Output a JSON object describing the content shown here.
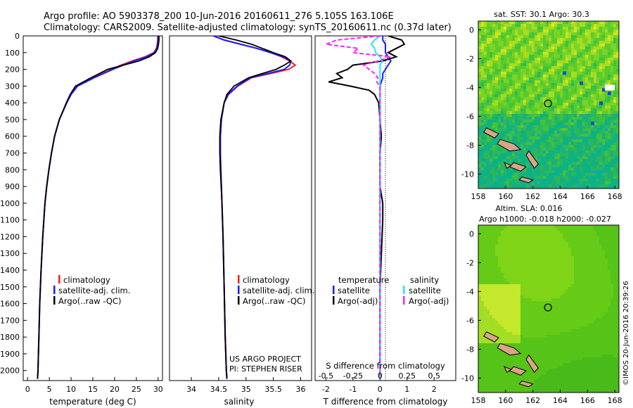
{
  "header": {
    "line1": "Argo profile: AO 5903378_200 10-Jun-2016 20160611_276 5.105S 163.106E",
    "line2": "Climatology: CARS2009. Satellite-adjusted climatology: synTS_20160611.nc (0.37d later)"
  },
  "depth_ticks": [
    "0",
    "100",
    "200",
    "300",
    "400",
    "500",
    "600",
    "700",
    "800",
    "900",
    "1000",
    "1100",
    "1200",
    "1300",
    "1400",
    "1500",
    "1600",
    "1700",
    "1800",
    "1900",
    "2000"
  ],
  "colors": {
    "climatology": "#ff1a1a",
    "satellite": "#1a1aff",
    "argo": "#000000",
    "sal_satellite": "#22e5ff",
    "sal_argo": "#ff22ff",
    "land": "#d9a48c",
    "marker": "#000000"
  },
  "chart_data": [
    {
      "type": "line",
      "panel": "temperature",
      "xlabel": "temperature (deg C)",
      "xlim": [
        -1,
        31
      ],
      "ylim": [
        2060,
        0
      ],
      "x_ticks": [
        "0",
        "5",
        "10",
        "15",
        "20",
        "25",
        "30"
      ],
      "legend": [
        "climatology",
        "satellite-adj. clim.",
        "Argo(..raw -QC)"
      ],
      "depths": [
        0,
        25,
        50,
        75,
        100,
        125,
        150,
        175,
        200,
        250,
        300,
        350,
        400,
        500,
        600,
        700,
        800,
        900,
        1000,
        1200,
        1400,
        1600,
        1800,
        2000,
        2050
      ],
      "series": [
        {
          "name": "climatology",
          "values": [
            29.9,
            29.9,
            29.8,
            29.6,
            29.0,
            27.0,
            24.0,
            21.5,
            19.3,
            15.0,
            11.3,
            9.9,
            9.0,
            7.3,
            6.2,
            5.5,
            4.9,
            4.4,
            4.0,
            3.5,
            3.1,
            2.8,
            2.6,
            2.4,
            2.3
          ]
        },
        {
          "name": "satellite-adj. clim.",
          "values": [
            30.0,
            30.0,
            29.9,
            29.7,
            29.2,
            27.4,
            24.5,
            22.0,
            19.6,
            15.3,
            11.5,
            10.0,
            9.0,
            7.3,
            6.2,
            5.5,
            4.9,
            4.4,
            4.0,
            3.5,
            3.1,
            2.8,
            2.6,
            2.4,
            2.3
          ]
        },
        {
          "name": "Argo(..raw -QC)",
          "values": [
            30.2,
            30.2,
            30.1,
            29.9,
            29.4,
            28.0,
            25.6,
            22.0,
            18.4,
            14.6,
            11.0,
            9.8,
            8.9,
            7.3,
            6.2,
            5.5,
            4.9,
            4.4,
            4.0,
            3.5,
            3.1,
            2.8,
            2.6,
            2.4,
            2.3
          ]
        }
      ]
    },
    {
      "type": "line",
      "panel": "salinity",
      "xlabel": "salinity",
      "xlim": [
        33.6,
        36.2
      ],
      "ylim": [
        2060,
        0
      ],
      "x_ticks": [
        "34",
        "34.5",
        "35",
        "35.5",
        "36"
      ],
      "legend": [
        "climatology",
        "satellite-adj. clim.",
        "Argo(..raw -QC)"
      ],
      "annotation": [
        "US ARGO PROJECT",
        "PI: STEPHEN RISER"
      ],
      "depths": [
        0,
        25,
        50,
        75,
        100,
        125,
        150,
        175,
        200,
        225,
        250,
        300,
        350,
        400,
        500,
        600,
        700,
        800,
        1000,
        1200,
        1500,
        1800,
        2000,
        2050
      ],
      "series": [
        {
          "name": "climatology",
          "values": [
            34.4,
            34.6,
            34.9,
            35.2,
            35.45,
            35.65,
            35.8,
            35.9,
            35.78,
            35.45,
            35.1,
            34.85,
            34.68,
            34.6,
            34.55,
            34.53,
            34.53,
            34.54,
            34.56,
            34.58,
            34.6,
            34.62,
            34.64,
            34.65
          ]
        },
        {
          "name": "satellite-adj. clim.",
          "values": [
            34.4,
            34.6,
            34.9,
            35.2,
            35.45,
            35.68,
            35.82,
            35.8,
            35.7,
            35.4,
            35.08,
            34.84,
            34.67,
            34.6,
            34.55,
            34.53,
            34.53,
            34.54,
            34.56,
            34.58,
            34.6,
            34.62,
            34.64,
            34.65
          ]
        },
        {
          "name": "Argo(..raw -QC)",
          "values": [
            34.5,
            34.82,
            35.1,
            35.3,
            35.5,
            35.72,
            35.82,
            35.7,
            35.55,
            35.3,
            35.05,
            34.78,
            34.65,
            34.6,
            34.54,
            34.52,
            34.52,
            34.53,
            34.56,
            34.58,
            34.6,
            34.62,
            34.64,
            34.65
          ]
        }
      ]
    },
    {
      "type": "line",
      "panel": "difference",
      "xlabel": "T difference from climatology",
      "xlabel_s": "S difference from climatology",
      "xlim": [
        -2.4,
        2.8
      ],
      "ylim": [
        2060,
        0
      ],
      "x_ticks": [
        "-2",
        "-1",
        "0",
        "1",
        "2"
      ],
      "s_ticks": [
        "-0.5",
        "-0.25",
        "0",
        "0.25",
        "0.5"
      ],
      "legend_headers": [
        "temperature",
        "salinity"
      ],
      "legend": [
        "satellite",
        "Argo(-adj)",
        "satellite",
        "Argo(-adj)"
      ],
      "depths": [
        0,
        25,
        50,
        75,
        100,
        125,
        150,
        175,
        200,
        225,
        250,
        275,
        300,
        325,
        350,
        400,
        500,
        600,
        700,
        800,
        900,
        1000,
        1100,
        1500,
        2000,
        2050
      ],
      "series": [
        {
          "name": "temperature satellite",
          "values": [
            0.1,
            0.1,
            0.2,
            0.2,
            0.2,
            0.3,
            0.4,
            0.3,
            0.2,
            0.1,
            0.1,
            0.05,
            0.0,
            0.0,
            0.0,
            0.0,
            0.0,
            0.0,
            0.0,
            0.0,
            0.0,
            0.0,
            0.0,
            0.0,
            0.0,
            0.0
          ]
        },
        {
          "name": "temperature Argo(-adj)",
          "values": [
            0.3,
            0.8,
            0.9,
            0.6,
            0.3,
            0.6,
            0.1,
            -1.0,
            -1.2,
            -1.6,
            -1.4,
            -1.9,
            -1.1,
            -0.4,
            -0.2,
            -0.05,
            0.0,
            0.05,
            0.0,
            0.0,
            0.0,
            0.1,
            0.1,
            0.0,
            0.0,
            0.0
          ]
        },
        {
          "name": "salinity satellite",
          "values": [
            0.0,
            -0.05,
            -0.08,
            -0.05,
            -0.04,
            0.0,
            0.02,
            0.0,
            0.0,
            0.0,
            0.0,
            0.0,
            0.0,
            0.0,
            0.0,
            0.0,
            0.0,
            0.0,
            0.0,
            0.0,
            0.0,
            0.0,
            0.0,
            0.0,
            0.0,
            0.0
          ]
        },
        {
          "name": "salinity Argo(-adj)",
          "values": [
            0.0,
            -0.4,
            -0.5,
            -0.2,
            -0.25,
            0.1,
            -0.02,
            -0.15,
            -0.1,
            -0.05,
            -0.02,
            -0.03,
            0.0,
            0.0,
            0.0,
            0.0,
            0.0,
            0.0,
            0.0,
            0.0,
            0.0,
            0.0,
            0.0,
            0.0,
            0.0,
            0.0
          ]
        }
      ]
    },
    {
      "type": "heatmap",
      "panel": "sst_map",
      "title": "sat. SST: 30.1  Argo: 30.3",
      "x_ticks": [
        "158",
        "160",
        "162",
        "164",
        "166",
        "168"
      ],
      "y_ticks": [
        "0",
        "-2",
        "-4",
        "-6",
        "-8",
        "-10"
      ],
      "xlim": [
        158,
        168.3
      ],
      "ylim": [
        -11,
        0.6
      ],
      "marker": [
        163.106,
        -5.105
      ]
    },
    {
      "type": "heatmap",
      "panel": "sla_map",
      "title": "Altim. SLA: 0.016",
      "subtitle": "Argo h1000: -0.018  h2000: -0.027",
      "x_ticks": [
        "158",
        "160",
        "162",
        "164",
        "166",
        "168"
      ],
      "y_ticks": [
        "0",
        "-2",
        "-4",
        "-6",
        "-8",
        "-10"
      ],
      "xlim": [
        158,
        168.3
      ],
      "ylim": [
        -11,
        0.6
      ],
      "marker": [
        163.106,
        -5.105
      ]
    }
  ],
  "credit": "©IMOS 20-Jun-2016 20:39:26"
}
